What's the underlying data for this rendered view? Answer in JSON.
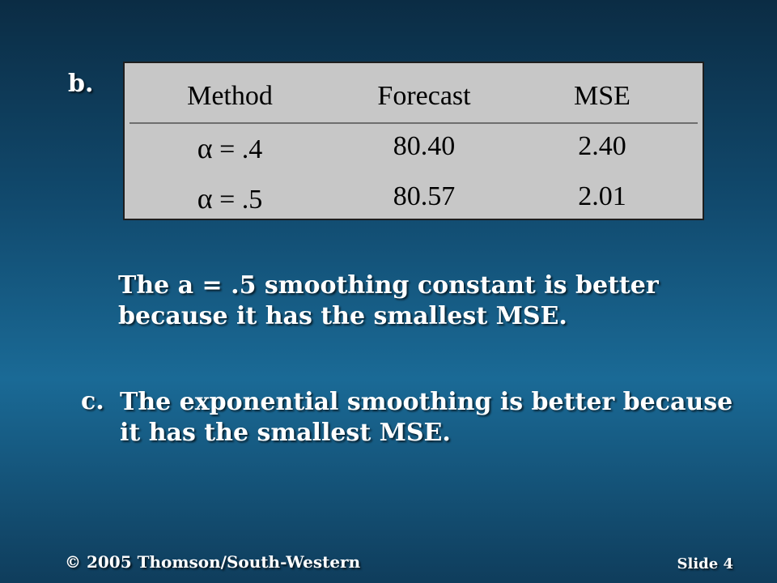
{
  "slide": {
    "part_b_label": "b.",
    "table": {
      "headers": [
        "Method",
        "Forecast",
        "MSE"
      ],
      "rows": [
        {
          "method_symbol": "α",
          "method_rest": " = .4",
          "forecast": "80.40",
          "mse": "2.40"
        },
        {
          "method_symbol": "α",
          "method_rest": " = .5",
          "forecast": "80.57",
          "mse": "2.01"
        }
      ]
    },
    "paragraph_b": "The a = .5 smoothing constant is better because it has the smallest MSE.",
    "part_c_marker": "c.",
    "paragraph_c": "The exponential smoothing is better because it has the smallest MSE.",
    "footer_copyright": "© 2005 Thomson/South-Western",
    "footer_slide": "Slide 4"
  },
  "colors": {
    "table_background": "#c7c7c7",
    "text_primary": "#ffffff",
    "table_text": "#000000"
  }
}
